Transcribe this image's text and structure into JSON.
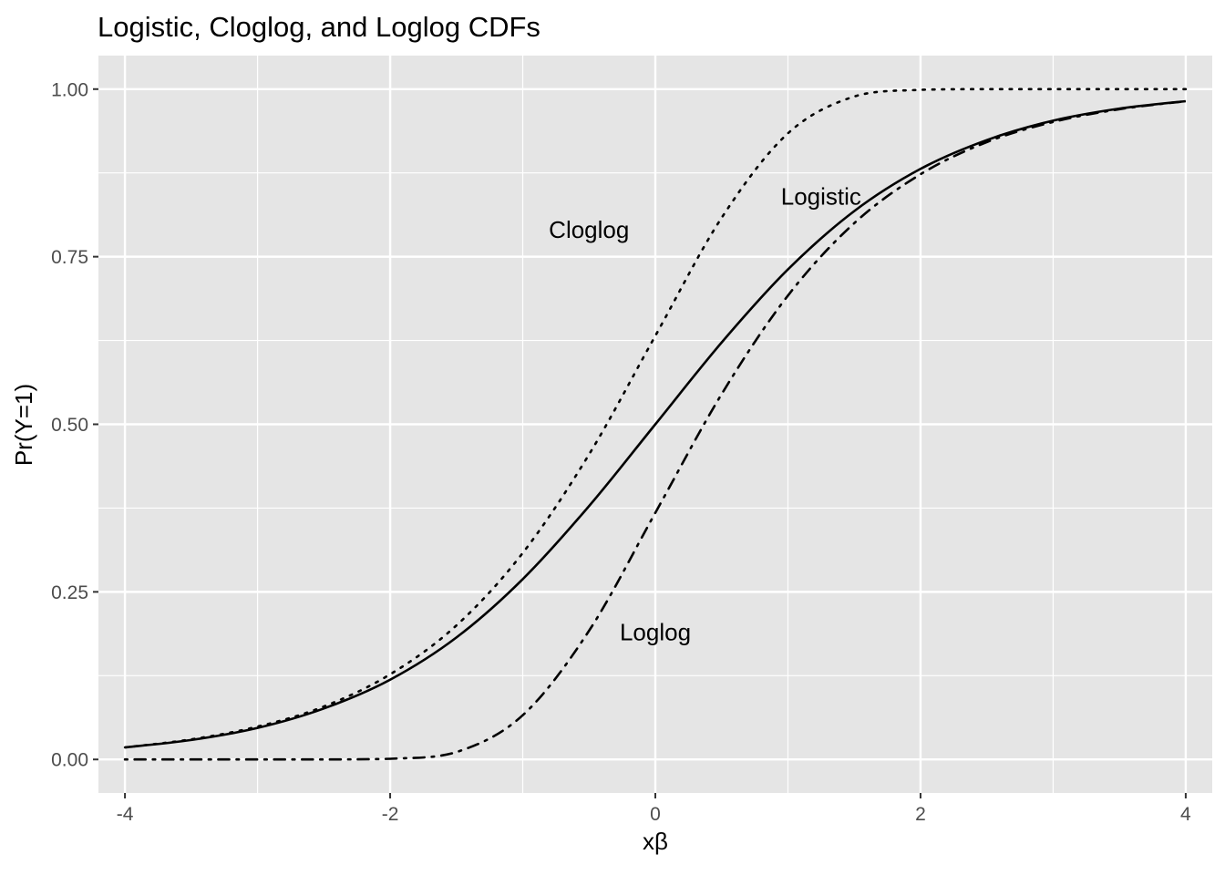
{
  "chart_data": {
    "type": "line",
    "title": "Logistic, Cloglog, and Loglog CDFs",
    "xlabel": "xβ",
    "ylabel": "Pr(Y=1)",
    "xlim": [
      -4.2,
      4.2
    ],
    "ylim": [
      -0.05,
      1.05
    ],
    "x_ticks": [
      -4,
      -2,
      0,
      2,
      4
    ],
    "x_tick_labels": [
      "-4",
      "-2",
      "0",
      "2",
      "4"
    ],
    "y_ticks": [
      0,
      0.25,
      0.5,
      0.75,
      1
    ],
    "y_tick_labels": [
      "0.00",
      "0.25",
      "0.50",
      "0.75",
      "1.00"
    ],
    "grid": true,
    "panel_background": "#e5e5e5",
    "grid_color": "#ffffff",
    "line_color": "#000000",
    "x": [
      -4,
      -3.5,
      -3,
      -2.5,
      -2,
      -1.5,
      -1,
      -0.5,
      0,
      0.5,
      1,
      1.5,
      2,
      2.5,
      3,
      3.5,
      4
    ],
    "series": [
      {
        "linetype": "solid",
        "values": [
          0.018,
          0.029,
          0.047,
          0.076,
          0.119,
          0.182,
          0.269,
          0.378,
          0.5,
          0.622,
          0.731,
          0.818,
          0.881,
          0.924,
          0.953,
          0.971,
          0.982
        ]
      },
      {
        "linetype": "dotted",
        "values": [
          0.018,
          0.03,
          0.049,
          0.079,
          0.127,
          0.2,
          0.308,
          0.455,
          0.632,
          0.808,
          0.934,
          0.989,
          0.999,
          1.0,
          1.0,
          1.0,
          1.0
        ]
      },
      {
        "linetype": "dotdash",
        "values": [
          0.0,
          0.0,
          0.0,
          0.0,
          0.001,
          0.011,
          0.066,
          0.192,
          0.368,
          0.545,
          0.692,
          0.8,
          0.873,
          0.921,
          0.951,
          0.97,
          0.982
        ]
      }
    ],
    "annotations": [
      {
        "text": "Logistic",
        "x": 1.25,
        "y": 0.84
      },
      {
        "text": "Cloglog",
        "x": -0.5,
        "y": 0.79
      },
      {
        "text": "Loglog",
        "x": 0,
        "y": 0.19
      }
    ]
  }
}
